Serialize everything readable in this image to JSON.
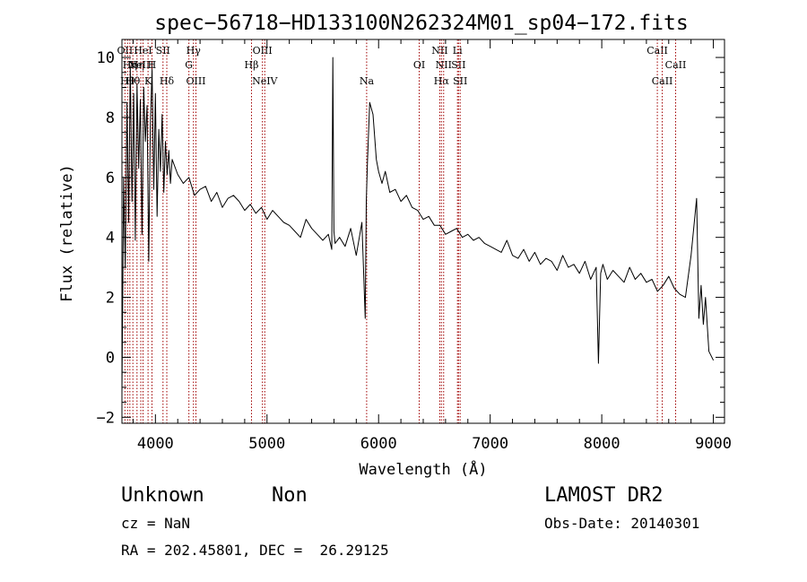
{
  "chart_data": {
    "type": "line",
    "title": "spec−56718−HD133100N262324M01_sp04−172.fits",
    "xlabel": "Wavelength (Å)",
    "ylabel": "Flux (relative)",
    "xlim": [
      3700,
      9100
    ],
    "ylim": [
      -2.2,
      10.6
    ],
    "xticks": [
      4000,
      5000,
      6000,
      7000,
      8000,
      9000
    ],
    "yticks": [
      -2,
      0,
      2,
      4,
      6,
      8,
      10
    ],
    "grid": false,
    "series": [
      {
        "color": "#000000",
        "x": [
          3700,
          3715,
          3730,
          3745,
          3760,
          3775,
          3790,
          3805,
          3820,
          3835,
          3850,
          3865,
          3880,
          3895,
          3910,
          3925,
          3940,
          3955,
          3970,
          3985,
          4000,
          4015,
          4030,
          4045,
          4060,
          4075,
          4090,
          4105,
          4120,
          4135,
          4150,
          4200,
          4250,
          4300,
          4350,
          4400,
          4450,
          4500,
          4550,
          4600,
          4650,
          4700,
          4750,
          4800,
          4850,
          4900,
          4950,
          5000,
          5050,
          5100,
          5150,
          5200,
          5250,
          5300,
          5350,
          5400,
          5450,
          5500,
          5550,
          5580,
          5590,
          5600,
          5610,
          5650,
          5700,
          5750,
          5800,
          5850,
          5880,
          5890,
          5900,
          5920,
          5950,
          5980,
          6000,
          6030,
          6060,
          6100,
          6150,
          6200,
          6250,
          6300,
          6350,
          6400,
          6450,
          6500,
          6550,
          6600,
          6650,
          6700,
          6750,
          6800,
          6850,
          6900,
          6950,
          7000,
          7050,
          7100,
          7150,
          7200,
          7250,
          7300,
          7350,
          7400,
          7450,
          7500,
          7550,
          7600,
          7650,
          7700,
          7750,
          7800,
          7850,
          7900,
          7950,
          7970,
          7990,
          8010,
          8050,
          8100,
          8150,
          8200,
          8250,
          8300,
          8350,
          8400,
          8450,
          8500,
          8550,
          8600,
          8650,
          8700,
          8750,
          8800,
          8850,
          8870,
          8890,
          8910,
          8930,
          8960,
          9000
        ],
        "y": [
          -1.2,
          6.0,
          3.0,
          8.5,
          4.5,
          9.7,
          5.2,
          8.8,
          3.9,
          9.1,
          6.3,
          8.6,
          4.1,
          9.0,
          7.2,
          8.4,
          3.2,
          7.8,
          9.6,
          5.6,
          8.8,
          4.7,
          7.6,
          6.2,
          8.1,
          5.5,
          7.2,
          6.1,
          6.9,
          5.8,
          6.6,
          6.1,
          5.8,
          6.0,
          5.4,
          5.6,
          5.7,
          5.2,
          5.5,
          5.0,
          5.3,
          5.4,
          5.2,
          4.9,
          5.1,
          4.8,
          5.0,
          4.6,
          4.9,
          4.7,
          4.5,
          4.4,
          4.2,
          4.0,
          4.6,
          4.3,
          4.1,
          3.9,
          4.1,
          3.6,
          10.0,
          4.2,
          3.8,
          4.0,
          3.7,
          4.3,
          3.4,
          4.5,
          1.3,
          5.2,
          6.5,
          8.5,
          8.1,
          6.6,
          6.2,
          5.8,
          6.2,
          5.5,
          5.6,
          5.2,
          5.4,
          5.0,
          4.9,
          4.6,
          4.7,
          4.4,
          4.4,
          4.1,
          4.2,
          4.3,
          4.0,
          4.1,
          3.9,
          4.0,
          3.8,
          3.7,
          3.6,
          3.5,
          3.9,
          3.4,
          3.3,
          3.6,
          3.2,
          3.5,
          3.1,
          3.3,
          3.2,
          2.9,
          3.4,
          3.0,
          3.1,
          2.8,
          3.2,
          2.6,
          3.0,
          -0.2,
          2.8,
          3.1,
          2.6,
          2.9,
          2.7,
          2.5,
          3.0,
          2.6,
          2.8,
          2.5,
          2.6,
          2.2,
          2.4,
          2.7,
          2.3,
          2.1,
          2.0,
          3.4,
          5.3,
          1.3,
          2.4,
          1.1,
          2.0,
          0.2,
          -0.1
        ]
      }
    ],
    "lines": [
      {
        "x": 3727,
        "labels": [
          "OII"
        ],
        "row": 1
      },
      {
        "x": 3750,
        "labels": [
          "Hθ"
        ],
        "row": 3
      },
      {
        "x": 3771,
        "labels": [
          "Hη"
        ],
        "row": 2
      },
      {
        "x": 3798,
        "labels": [
          "Hθ"
        ],
        "row": 3
      },
      {
        "x": 3835,
        "labels": [
          "Hη"
        ],
        "row": 2
      },
      {
        "x": 3869,
        "labels": [
          "NeIII"
        ],
        "row": 2
      },
      {
        "x": 3889,
        "labels": [
          "HeI"
        ],
        "row": 1
      },
      {
        "x": 3934,
        "labels": [
          "K"
        ],
        "row": 3
      },
      {
        "x": 3969,
        "labels": [
          "H"
        ],
        "row": 2
      },
      {
        "x": 4068,
        "labels": [
          "SII"
        ],
        "row": 1
      },
      {
        "x": 4102,
        "labels": [
          "Hδ"
        ],
        "row": 3
      },
      {
        "x": 4300,
        "labels": [
          "G"
        ],
        "row": 2
      },
      {
        "x": 4341,
        "labels": [
          "Hγ"
        ],
        "row": 1
      },
      {
        "x": 4363,
        "labels": [
          "OIII"
        ],
        "row": 3
      },
      {
        "x": 4861,
        "labels": [
          "Hβ"
        ],
        "row": 2
      },
      {
        "x": 4959,
        "labels": [
          "OIII"
        ],
        "row": 1
      },
      {
        "x": 4980,
        "labels": [
          "NeIV"
        ],
        "row": 3
      },
      {
        "x": 5893,
        "labels": [
          "Na"
        ],
        "row": 3
      },
      {
        "x": 6364,
        "labels": [
          "OI"
        ],
        "row": 2
      },
      {
        "x": 6548,
        "labels": [
          "NII"
        ],
        "row": 1
      },
      {
        "x": 6563,
        "labels": [
          "Hα"
        ],
        "row": 3
      },
      {
        "x": 6583,
        "labels": [
          "NII"
        ],
        "row": 2
      },
      {
        "x": 6707,
        "labels": [
          "Li"
        ],
        "row": 1
      },
      {
        "x": 6716,
        "labels": [
          "SII"
        ],
        "row": 2
      },
      {
        "x": 6731,
        "labels": [
          "SII"
        ],
        "row": 3
      },
      {
        "x": 8498,
        "labels": [
          "CaII"
        ],
        "row": 1
      },
      {
        "x": 8542,
        "labels": [
          "CaII"
        ],
        "row": 3
      },
      {
        "x": 8662,
        "labels": [
          "CaII"
        ],
        "row": 2
      }
    ]
  },
  "info": {
    "class": "Unknown",
    "subclass": "Non",
    "cz": "cz = NaN",
    "coords": "RA = 202.45801, DEC =  26.29125",
    "survey": "LAMOST DR2",
    "obs_date": "Obs-Date: 20140301"
  }
}
